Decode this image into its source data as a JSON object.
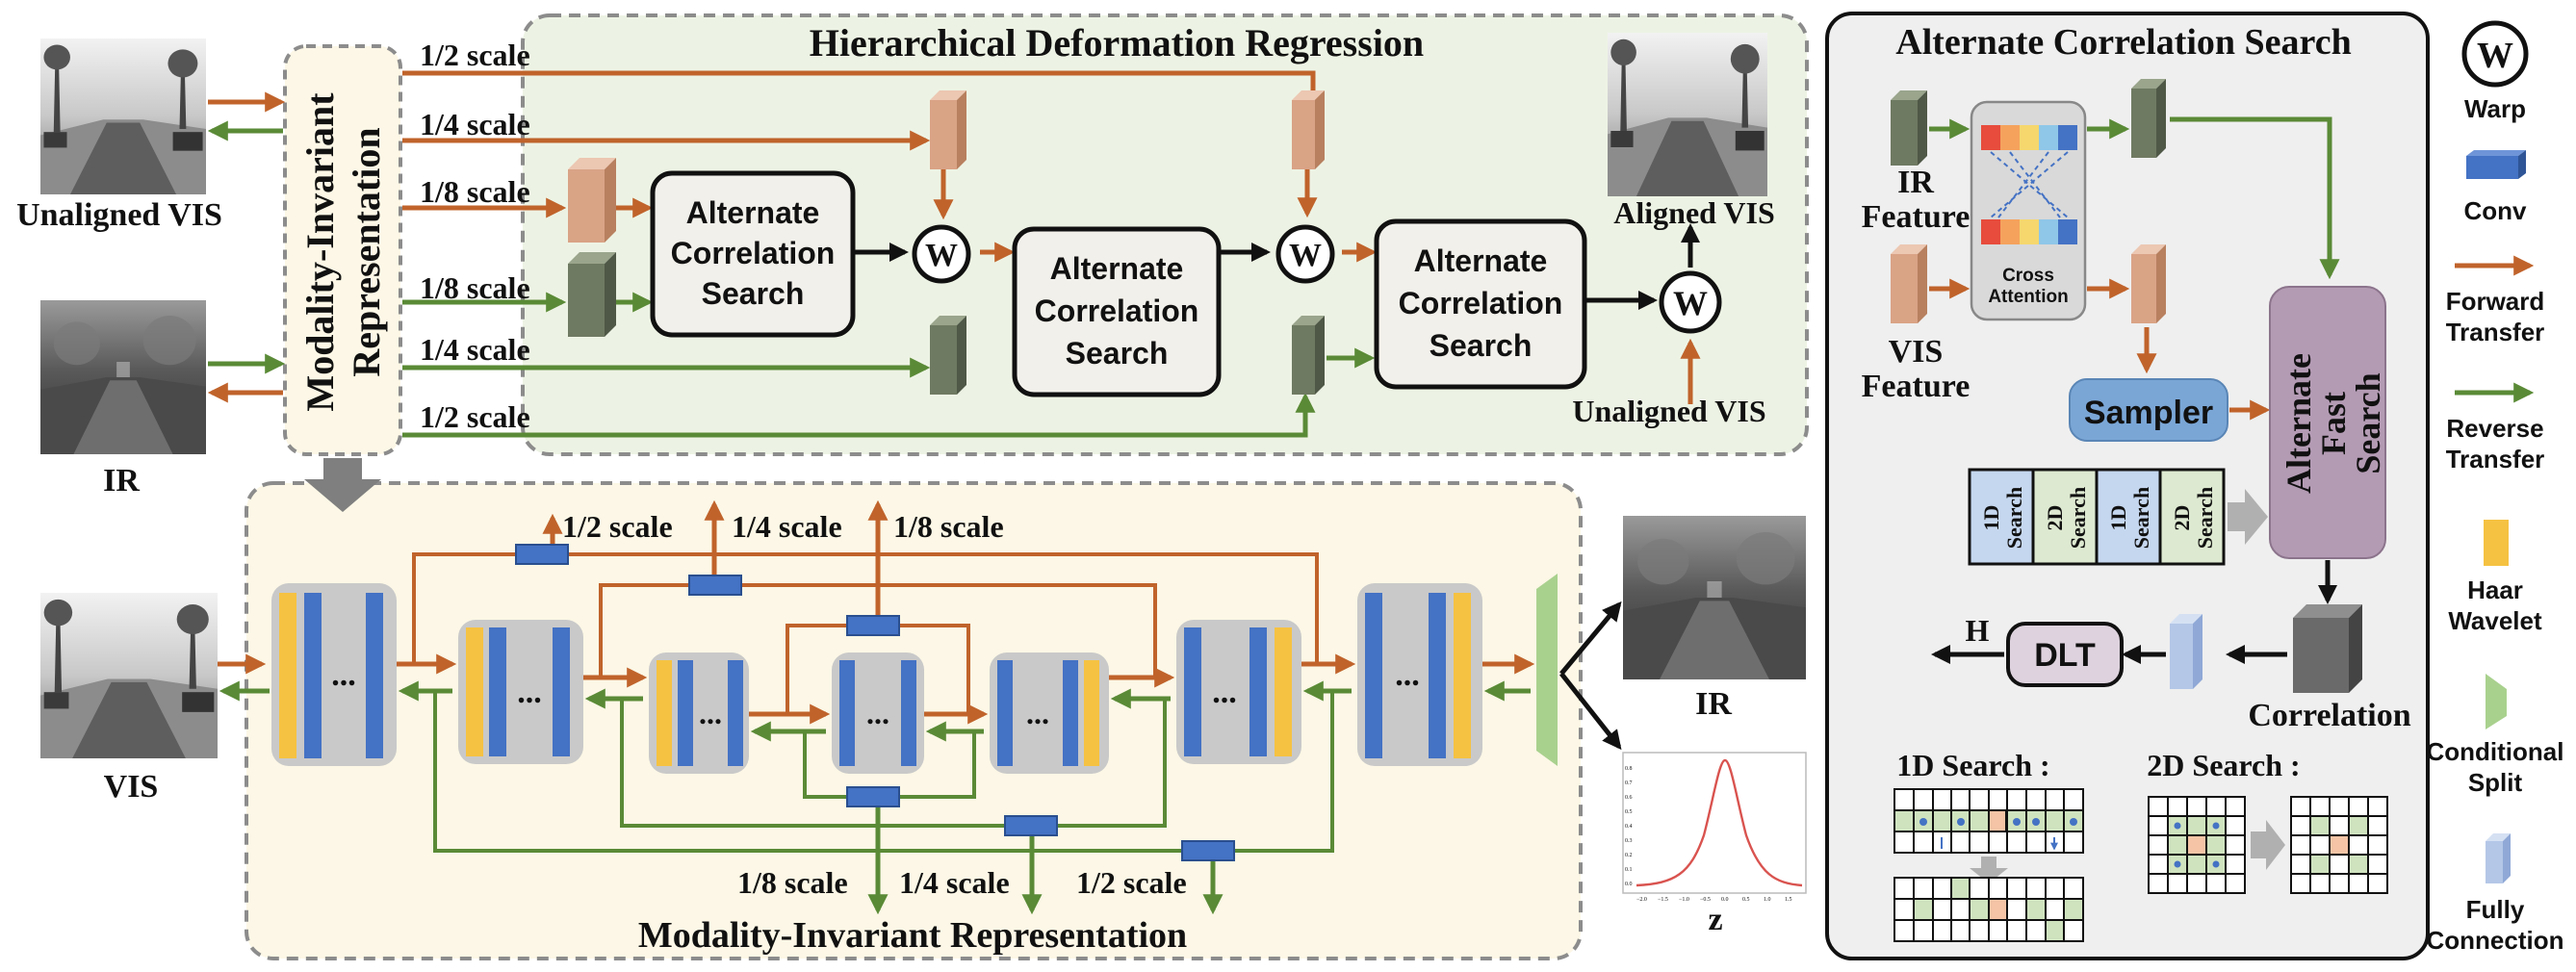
{
  "colors": {
    "forward": "#c0632b",
    "reverse": "#5a8a36",
    "conv": "#4472c4",
    "haar": "#f5c242",
    "split": "#a9d18e",
    "fc": "#b4c7e7",
    "panel_green": "#edf3e4",
    "panel_yellow": "#fcf7e6",
    "panel_gray": "#efefef"
  },
  "hdr": {
    "title": "Hierarchical Deformation Regression",
    "scales": [
      "1/2 scale",
      "1/4 scale",
      "1/8 scale",
      "1/8 scale",
      "1/4 scale",
      "1/2 scale"
    ],
    "block": [
      "Alternate",
      "Correlation",
      "Search"
    ],
    "warp": "W",
    "aligned": "Aligned VIS",
    "unaligned": "Unaligned VIS"
  },
  "left": {
    "unaligned": "Unaligned VIS",
    "ir": "IR",
    "mir": [
      "Modality-Invariant",
      "Representation"
    ]
  },
  "mir": {
    "title": "Modality-Invariant Representation",
    "vis": "VIS",
    "ir": "IR",
    "z": "z",
    "ellipsis": "...",
    "top_scales": [
      "1/2 scale",
      "1/4 scale",
      "1/8 scale"
    ],
    "bottom_scales": [
      "1/8 scale",
      "1/4 scale",
      "1/2 scale"
    ],
    "gauss_ticks": [
      "−2.0",
      "−1.5",
      "−1.0",
      "−0.5",
      "0.0",
      "0.5",
      "1.0",
      "1.5"
    ],
    "gauss_yticks": [
      "0.8",
      "0.7",
      "0.6",
      "0.5",
      "0.4",
      "0.3",
      "0.2",
      "0.1",
      "0.0"
    ]
  },
  "acs": {
    "title": "Alternate Correlation Search",
    "ir_feature": [
      "IR",
      "Feature"
    ],
    "vis_feature": [
      "VIS",
      "Feature"
    ],
    "cross_attention": [
      "Cross",
      "Attention"
    ],
    "sampler": "Sampler",
    "fast_search": [
      "Alternate",
      "Fast",
      "Search"
    ],
    "search_cells": [
      [
        "1D",
        "Search"
      ],
      [
        "2D",
        "Search"
      ],
      [
        "1D",
        "Search"
      ],
      [
        "2D",
        "Search"
      ]
    ],
    "dlt": "DLT",
    "h": "H",
    "correlation": "Correlation",
    "search1d": "1D Search :",
    "search2d": "2D Search :"
  },
  "legend": {
    "warp_symbol": "W",
    "items": [
      [
        "Warp"
      ],
      [
        "Conv"
      ],
      [
        "Forward",
        "Transfer"
      ],
      [
        "Reverse",
        "Transfer"
      ],
      [
        "Haar",
        "Wavelet"
      ],
      [
        "Conditional",
        "Split"
      ],
      [
        "Fully",
        "Connection"
      ]
    ]
  }
}
